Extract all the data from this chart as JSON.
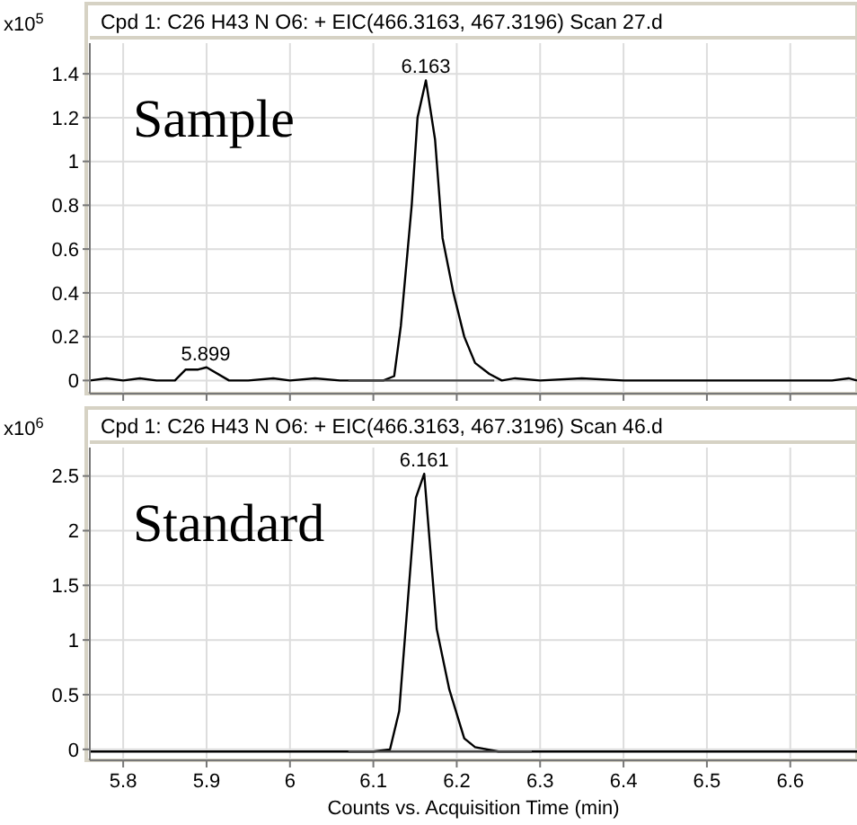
{
  "chart_data": [
    {
      "type": "line",
      "title": "Cpd 1: C26 H43 N O6: + EIC(466.3163, 467.3196) Scan 27.d",
      "ylabel": "x10$^{5}$",
      "xlim": [
        5.76,
        6.68
      ],
      "ylim": [
        -0.06,
        1.54
      ],
      "xticks": [
        5.8,
        5.9,
        6,
        6.1,
        6.2,
        6.3,
        6.4,
        6.5,
        6.6
      ],
      "yticks": [
        0,
        0.2,
        0.4,
        0.6,
        0.8,
        1,
        1.2,
        1.4
      ],
      "grid": true,
      "tick_labels": "y",
      "annotations": [
        "Sample",
        {
          "text": "6.163",
          "x": 6.163,
          "y": 1.37
        },
        {
          "text": "5.899",
          "x": 5.899,
          "y": 0.06
        }
      ],
      "series": [
        {
          "color": "#000000",
          "x": [
            5.76,
            5.78,
            5.8,
            5.82,
            5.84,
            5.86,
            5.862,
            5.875,
            5.89,
            5.9,
            5.927,
            5.95,
            5.98,
            6.0,
            6.03,
            6.06,
            6.09,
            6.112,
            6.125,
            6.133,
            6.146,
            6.153,
            6.163,
            6.174,
            6.183,
            6.196,
            6.209,
            6.222,
            6.239,
            6.254,
            6.27,
            6.3,
            6.35,
            6.4,
            6.45,
            6.5,
            6.55,
            6.6,
            6.65,
            6.67,
            6.68
          ],
          "values": [
            0,
            0.01,
            0,
            0.01,
            0,
            0,
            0,
            0.05,
            0.05,
            0.06,
            0,
            0,
            0.01,
            0,
            0.01,
            0,
            0,
            0,
            0.02,
            0.25,
            0.8,
            1.2,
            1.37,
            1.1,
            0.65,
            0.4,
            0.2,
            0.08,
            0.03,
            0,
            0.01,
            0,
            0.01,
            0,
            0,
            0,
            0,
            0,
            0,
            0.01,
            0
          ]
        },
        {
          "color": "#444444",
          "x": [
            6.07,
            6.245
          ],
          "values": [
            0,
            0
          ]
        }
      ]
    },
    {
      "type": "line",
      "title": "Cpd 1: C26 H43 N O6: + EIC(466.3163, 467.3196) Scan 46.d",
      "ylabel": "x10$^{6}$",
      "xlabel": "Counts vs. Acquisition Time (min)",
      "xlim": [
        5.76,
        6.68
      ],
      "ylim": [
        -0.1,
        2.76
      ],
      "xticks": [
        5.8,
        5.9,
        6,
        6.1,
        6.2,
        6.3,
        6.4,
        6.5,
        6.6
      ],
      "yticks": [
        0,
        0.5,
        1,
        1.5,
        2,
        2.5
      ],
      "grid": true,
      "annotations": [
        "Standard",
        {
          "text": "6.161",
          "x": 6.161,
          "y": 2.52
        }
      ],
      "series": [
        {
          "color": "#000000",
          "x": [
            5.76,
            5.9,
            6.0,
            6.1,
            6.12,
            6.131,
            6.151,
            6.161,
            6.176,
            6.191,
            6.209,
            6.222,
            6.25,
            6.3,
            6.4,
            6.5,
            6.6,
            6.68
          ],
          "values": [
            -0.02,
            -0.02,
            -0.02,
            -0.02,
            0.0,
            0.35,
            2.3,
            2.52,
            1.1,
            0.55,
            0.1,
            0.02,
            -0.02,
            -0.02,
            -0.02,
            -0.02,
            -0.02,
            -0.02
          ]
        },
        {
          "color": "#444444",
          "x": [
            6.07,
            6.29
          ],
          "values": [
            -0.02,
            -0.02
          ]
        }
      ]
    }
  ]
}
